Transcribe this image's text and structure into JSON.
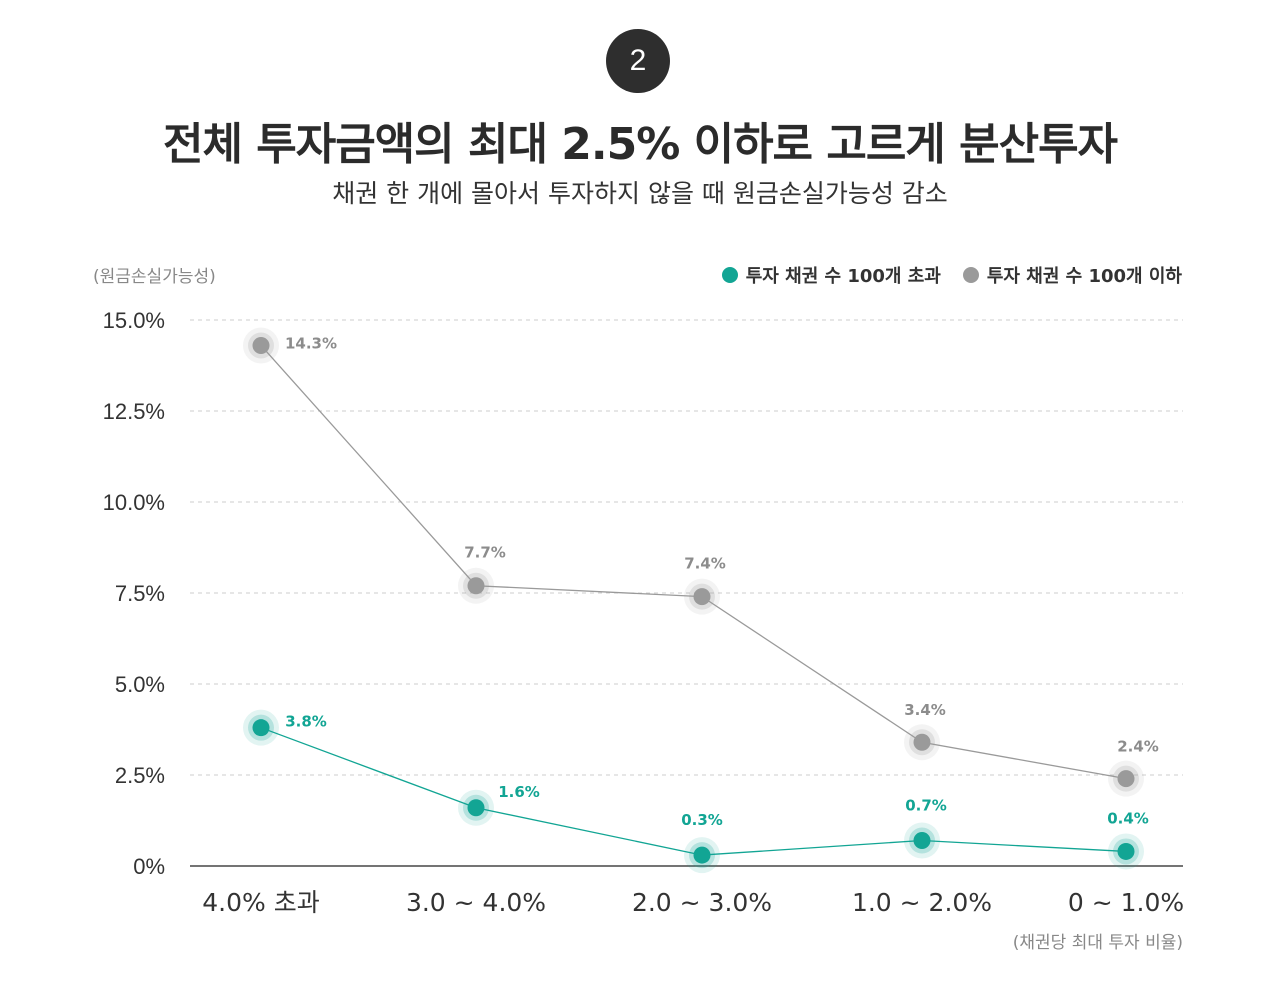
{
  "header": {
    "step_number": "2",
    "title": "전체 투자금액의 최대 2.5% 이하로 고르게 분산투자",
    "subtitle": "채권 한 개에 몰아서 투자하지 않을 때 원금손실가능성 감소"
  },
  "colors": {
    "teal": "#12a594",
    "gray": "#9a9a9a",
    "grid": "#cccccc",
    "axis": "#222222"
  },
  "chart_data": {
    "type": "line",
    "ylabel": "(원금손실가능성)",
    "xlabel": "(채권당 최대 투자 비율)",
    "categories": [
      "4.0% 초과",
      "3.0 ~ 4.0%",
      "2.0 ~ 3.0%",
      "1.0 ~ 2.0%",
      "0 ~ 1.0%"
    ],
    "yticks": [
      "0%",
      "2.5%",
      "5.0%",
      "7.5%",
      "10.0%",
      "12.5%",
      "15.0%"
    ],
    "ylim": [
      0,
      15
    ],
    "grid": true,
    "legend_position": "top-right",
    "series": [
      {
        "name": "투자 채권 수 100개 초과",
        "color": "#12a594",
        "values": [
          3.8,
          1.6,
          0.3,
          0.7,
          0.4
        ],
        "labels": [
          "3.8%",
          "1.6%",
          "0.3%",
          "0.7%",
          "0.4%"
        ]
      },
      {
        "name": "투자 채권 수 100개 이하",
        "color": "#9a9a9a",
        "values": [
          14.3,
          7.7,
          7.4,
          3.4,
          2.4
        ],
        "labels": [
          "14.3%",
          "7.7%",
          "7.4%",
          "3.4%",
          "2.4%"
        ]
      }
    ]
  }
}
